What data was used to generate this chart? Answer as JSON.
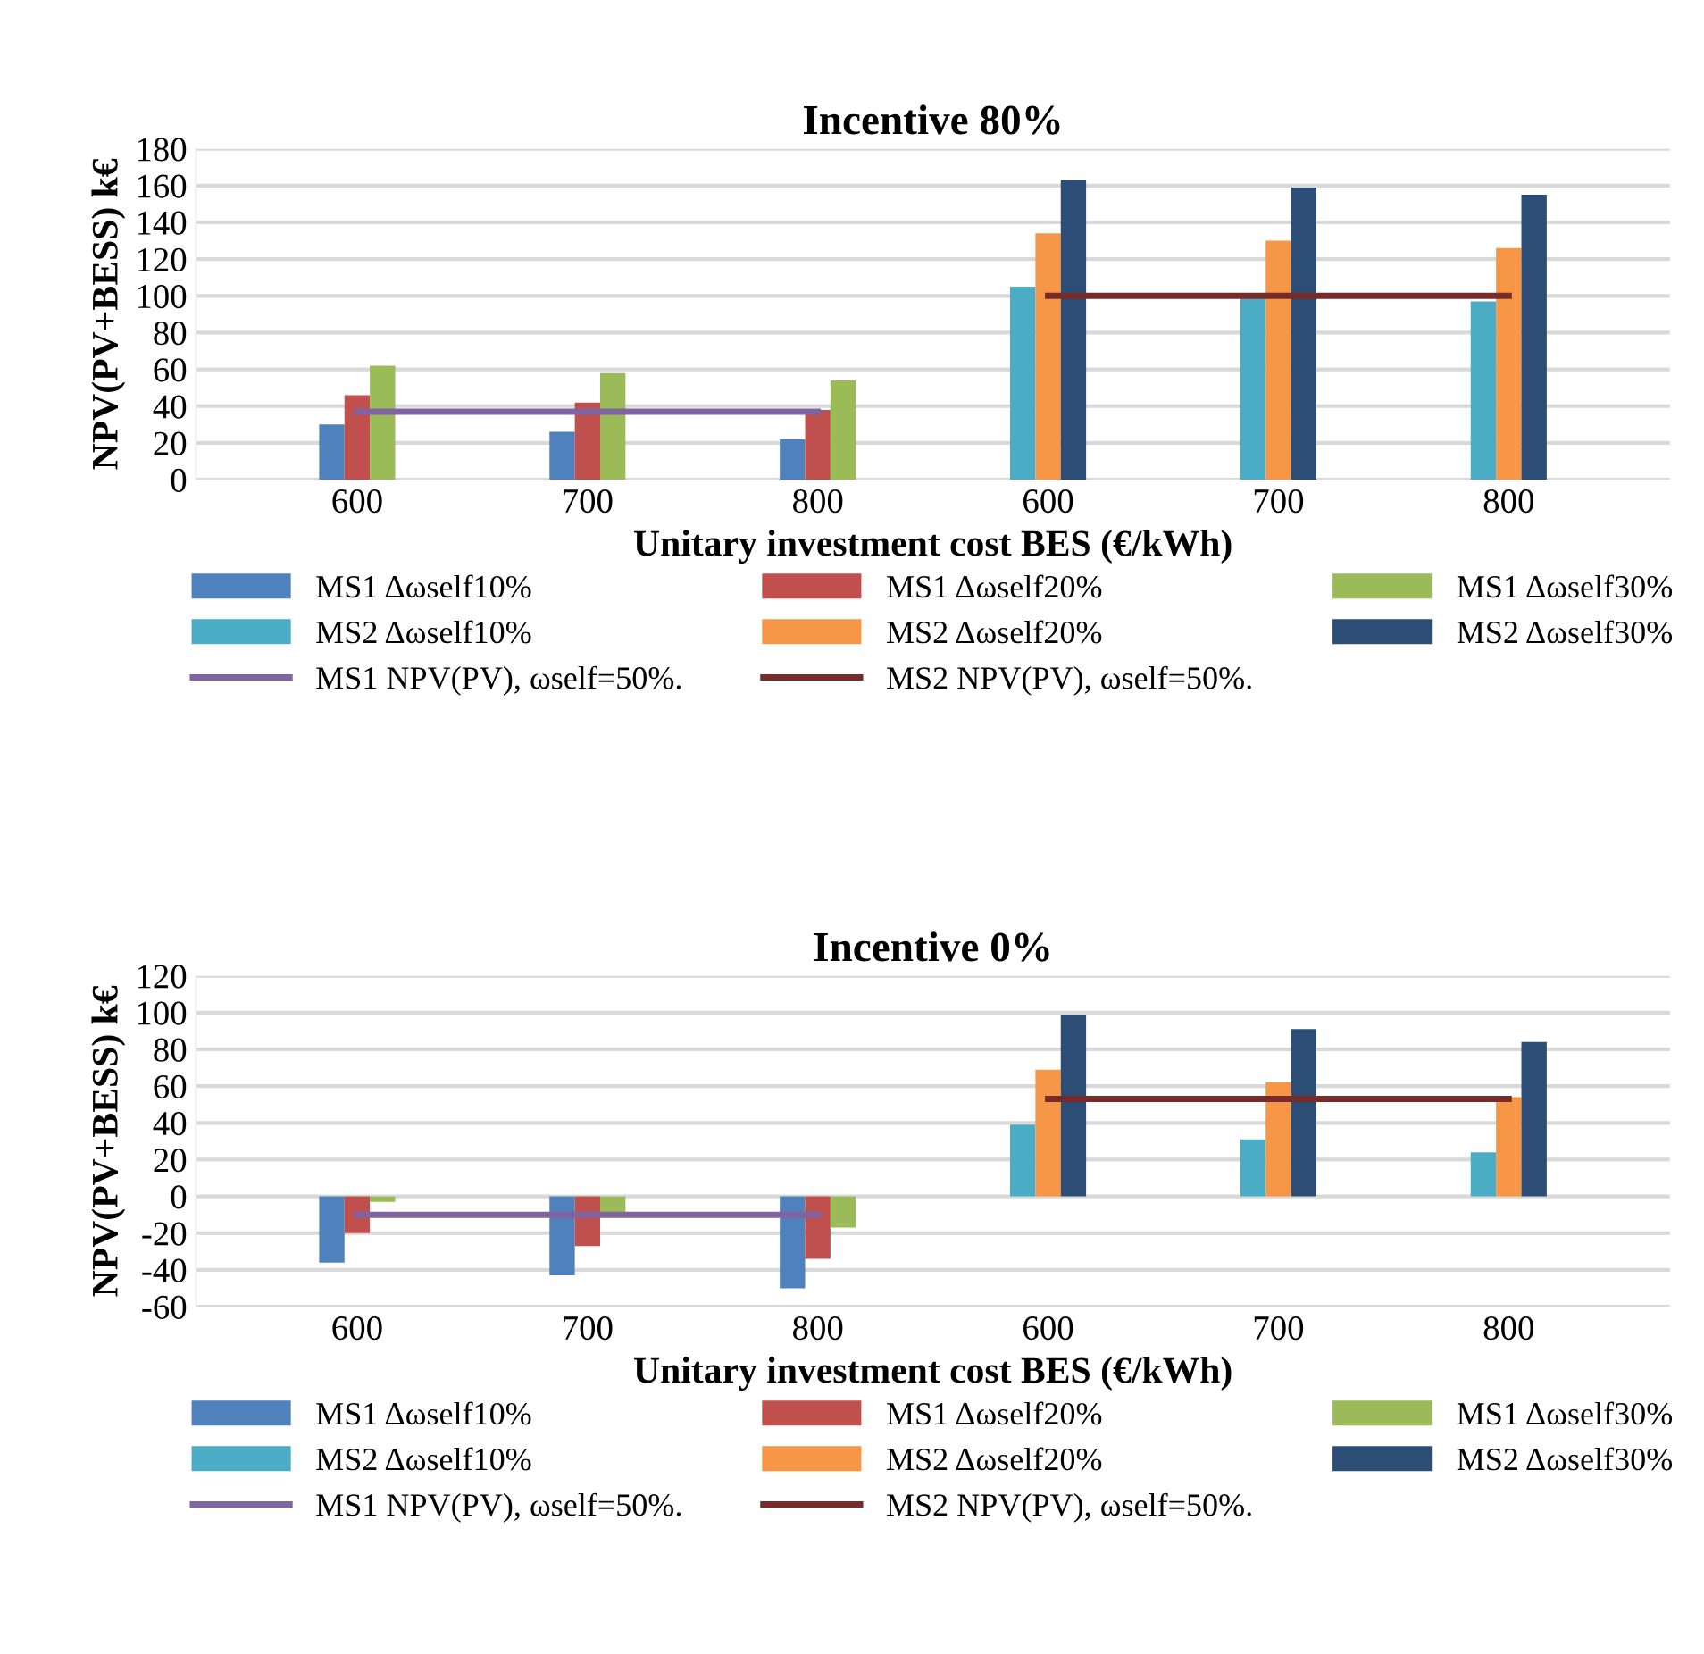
{
  "chart_data": [
    {
      "type": "bar",
      "title": "Incentive 80%",
      "xlabel": "Unitary investment cost BES (€/kWh)",
      "ylabel": "NPV(PV+BESS) k€",
      "categories": [
        "600",
        "700",
        "800",
        "600",
        "700",
        "800"
      ],
      "ylim": [
        0,
        180
      ],
      "yticks": [
        0,
        20,
        40,
        60,
        80,
        100,
        120,
        140,
        160,
        180
      ],
      "grid": "y",
      "legend": "bottom",
      "series": [
        {
          "name": "MS1 Δωself10%",
          "color": "#4f81bd",
          "values": [
            30,
            26,
            22,
            null,
            null,
            null
          ]
        },
        {
          "name": "MS1 Δωself20%",
          "color": "#c0504d",
          "values": [
            46,
            42,
            38,
            null,
            null,
            null
          ]
        },
        {
          "name": "MS1 Δωself30%",
          "color": "#9bbb59",
          "values": [
            62,
            58,
            54,
            null,
            null,
            null
          ]
        },
        {
          "name": "MS2 Δωself10%",
          "color": "#4bacc6",
          "values": [
            null,
            null,
            null,
            105,
            100,
            97
          ]
        },
        {
          "name": "MS2 Δωself20%",
          "color": "#f79646",
          "values": [
            null,
            null,
            null,
            134,
            130,
            126
          ]
        },
        {
          "name": "MS2 Δωself30%",
          "color": "#2c4d75",
          "values": [
            null,
            null,
            null,
            163,
            159,
            155
          ]
        },
        {
          "name": "MS1 NPV(PV), ωself=50%.",
          "type": "line",
          "color": "#8064a2",
          "values": [
            37,
            37,
            37,
            null,
            null,
            null
          ]
        },
        {
          "name": "MS2 NPV(PV), ωself=50%.",
          "type": "line",
          "color": "#772c2a",
          "values": [
            null,
            null,
            null,
            100,
            100,
            100
          ]
        }
      ]
    },
    {
      "type": "bar",
      "title": "Incentive 0%",
      "xlabel": "Unitary investment cost BES (€/kWh)",
      "ylabel": "NPV(PV+BESS) k€",
      "categories": [
        "600",
        "700",
        "800",
        "600",
        "700",
        "800"
      ],
      "ylim": [
        -60,
        120
      ],
      "yticks": [
        -60,
        -40,
        -20,
        0,
        20,
        40,
        60,
        80,
        100,
        120
      ],
      "grid": "y",
      "legend": "bottom",
      "series": [
        {
          "name": "MS1 Δωself10%",
          "color": "#4f81bd",
          "values": [
            -36,
            -43,
            -50,
            null,
            null,
            null
          ]
        },
        {
          "name": "MS1 Δωself20%",
          "color": "#c0504d",
          "values": [
            -20,
            -27,
            -34,
            null,
            null,
            null
          ]
        },
        {
          "name": "MS1 Δωself30%",
          "color": "#9bbb59",
          "values": [
            -3,
            -10,
            -17,
            null,
            null,
            null
          ]
        },
        {
          "name": "MS2 Δωself10%",
          "color": "#4bacc6",
          "values": [
            null,
            null,
            null,
            39,
            31,
            24
          ]
        },
        {
          "name": "MS2 Δωself20%",
          "color": "#f79646",
          "values": [
            null,
            null,
            null,
            69,
            62,
            54
          ]
        },
        {
          "name": "MS2 Δωself30%",
          "color": "#2c4d75",
          "values": [
            null,
            null,
            null,
            99,
            91,
            84
          ]
        },
        {
          "name": "MS1 NPV(PV), ωself=50%.",
          "type": "line",
          "color": "#8064a2",
          "values": [
            -10,
            -10,
            -10,
            null,
            null,
            null
          ]
        },
        {
          "name": "MS2 NPV(PV), ωself=50%.",
          "type": "line",
          "color": "#772c2a",
          "values": [
            null,
            null,
            null,
            53,
            53,
            53
          ]
        }
      ]
    }
  ]
}
